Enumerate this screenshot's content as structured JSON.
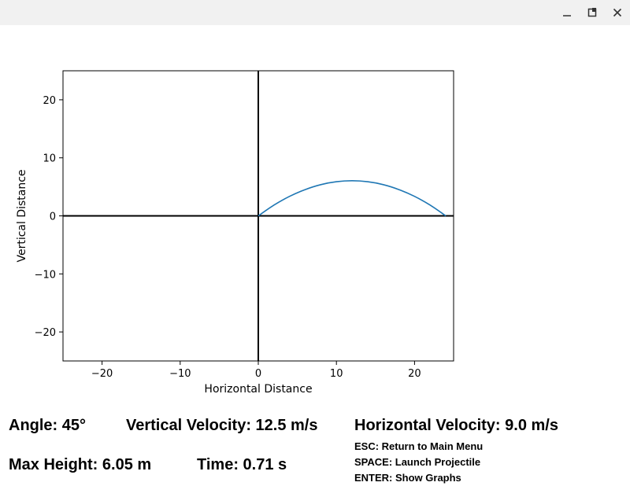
{
  "window": {
    "minimize_icon": "minimize-icon",
    "maximize_icon": "maximize-icon",
    "close_icon": "close-icon"
  },
  "chart_data": {
    "type": "line",
    "xlabel": "Horizontal Distance",
    "ylabel": "Vertical Distance",
    "xlim": [
      -25,
      25
    ],
    "ylim": [
      -25,
      25
    ],
    "xticks": [
      -20,
      -10,
      0,
      10,
      20
    ],
    "yticks": [
      -20,
      -10,
      0,
      10,
      20
    ],
    "xtick_labels": [
      "−20",
      "−10",
      "0",
      "10",
      "20"
    ],
    "ytick_labels": [
      "−20",
      "−10",
      "0",
      "10",
      "20"
    ],
    "grid": false,
    "axis_lines_at_zero": true,
    "series": [
      {
        "color": "#1f77b4",
        "x": [
          0,
          2,
          4,
          6,
          8,
          10,
          12,
          14,
          16,
          18,
          20,
          22,
          24
        ],
        "y": [
          0,
          1.85,
          3.36,
          4.53,
          5.38,
          5.88,
          6.05,
          5.88,
          5.38,
          4.53,
          3.36,
          1.85,
          0
        ]
      }
    ]
  },
  "stats": {
    "angle": "Angle: 45°",
    "vertical_velocity": "Vertical Velocity: 12.5 m/s",
    "horizontal_velocity": "Horizontal Velocity: 9.0 m/s",
    "max_height": "Max Height: 6.05 m",
    "time": "Time: 0.71 s"
  },
  "hints": {
    "esc": "ESC: Return to Main Menu",
    "space": "SPACE: Launch Projectile",
    "enter": "ENTER: Show Graphs"
  }
}
